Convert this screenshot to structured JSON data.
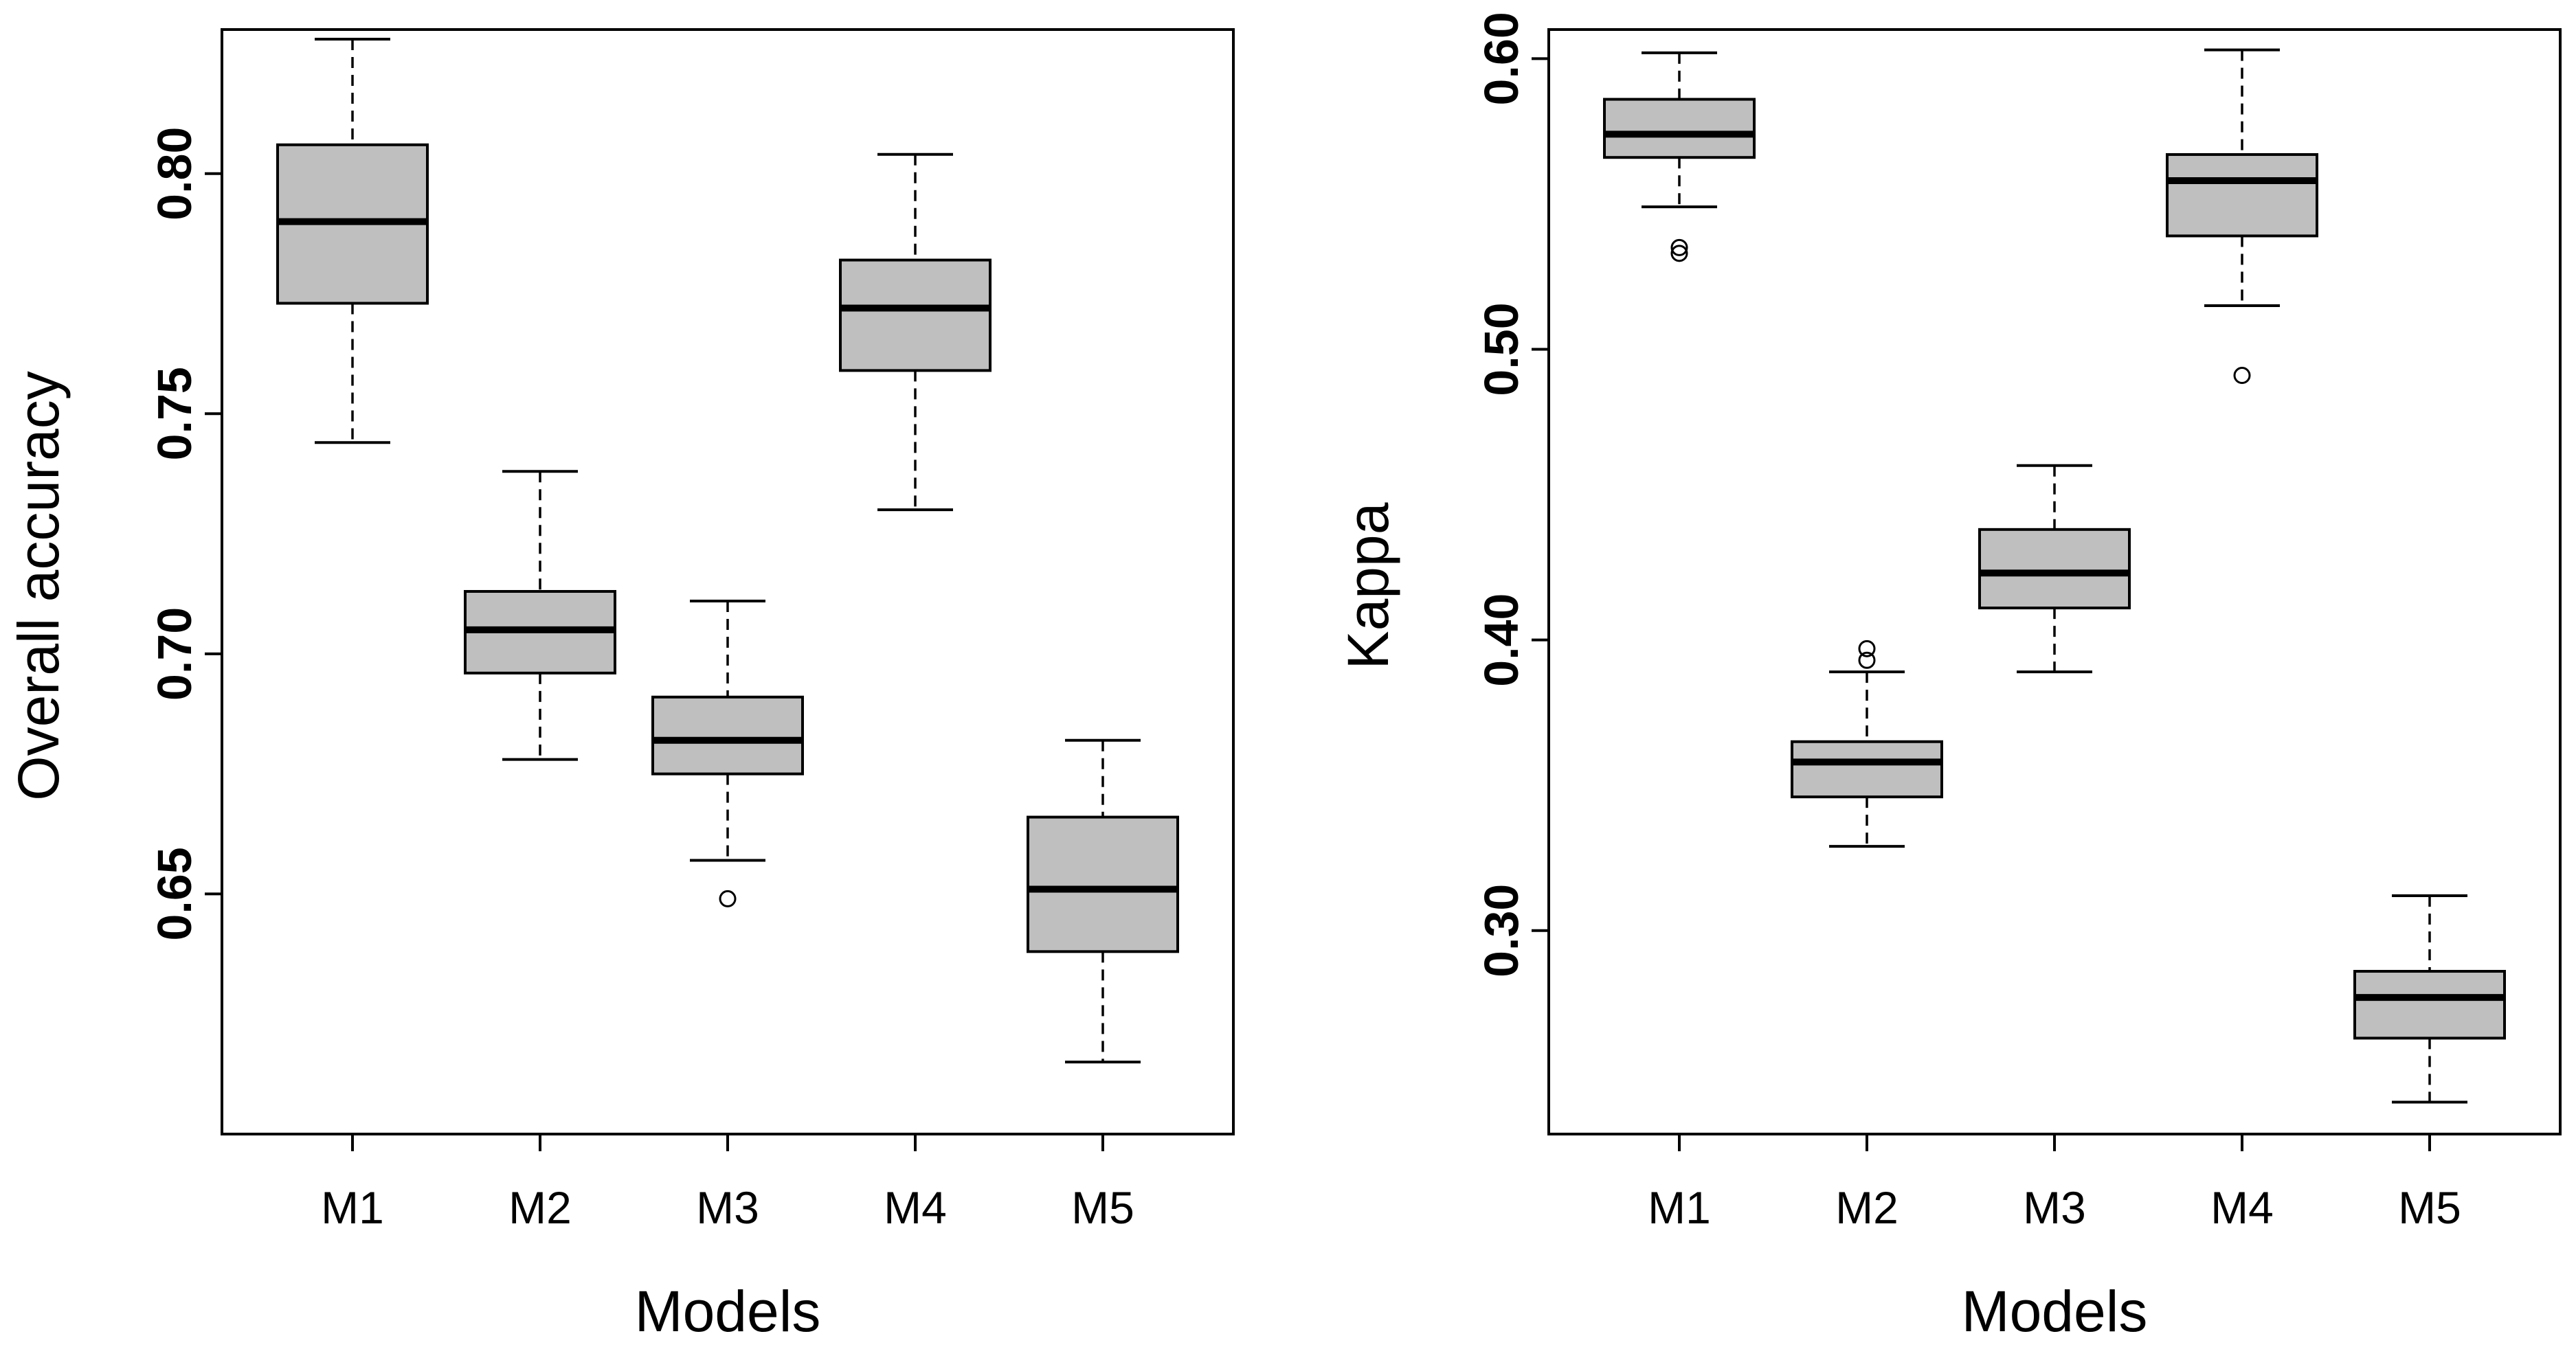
{
  "chart_data": [
    {
      "type": "boxplot",
      "xlabel": "Models",
      "ylabel": "Overall accuracy",
      "categories": [
        "M1",
        "M2",
        "M3",
        "M4",
        "M5"
      ],
      "ylim": [
        0.6,
        0.83
      ],
      "yticks": [
        0.65,
        0.7,
        0.75,
        0.8
      ],
      "ytick_labels": [
        "0.65",
        "0.70",
        "0.75",
        "0.80"
      ],
      "boxes": [
        {
          "name": "M1",
          "min": 0.744,
          "q1": 0.773,
          "median": 0.79,
          "q3": 0.806,
          "max": 0.828,
          "outliers": []
        },
        {
          "name": "M2",
          "min": 0.678,
          "q1": 0.696,
          "median": 0.705,
          "q3": 0.713,
          "max": 0.738,
          "outliers": []
        },
        {
          "name": "M3",
          "min": 0.657,
          "q1": 0.675,
          "median": 0.682,
          "q3": 0.691,
          "max": 0.711,
          "outliers": [
            0.649
          ]
        },
        {
          "name": "M4",
          "min": 0.73,
          "q1": 0.759,
          "median": 0.772,
          "q3": 0.782,
          "max": 0.804,
          "outliers": []
        },
        {
          "name": "M5",
          "min": 0.615,
          "q1": 0.638,
          "median": 0.651,
          "q3": 0.666,
          "max": 0.682,
          "outliers": []
        }
      ]
    },
    {
      "type": "boxplot",
      "xlabel": "Models",
      "ylabel": "Kappa",
      "categories": [
        "M1",
        "M2",
        "M3",
        "M4",
        "M5"
      ],
      "ylim": [
        0.23,
        0.61
      ],
      "yticks": [
        0.3,
        0.4,
        0.5,
        0.6
      ],
      "ytick_labels": [
        "0.30",
        "0.40",
        "0.50",
        "0.60"
      ],
      "boxes": [
        {
          "name": "M1",
          "min": 0.549,
          "q1": 0.566,
          "median": 0.574,
          "q3": 0.586,
          "max": 0.602,
          "outliers": [
            0.533,
            0.535
          ]
        },
        {
          "name": "M2",
          "min": 0.329,
          "q1": 0.346,
          "median": 0.358,
          "q3": 0.365,
          "max": 0.389,
          "outliers": [
            0.393,
            0.397
          ]
        },
        {
          "name": "M3",
          "min": 0.389,
          "q1": 0.411,
          "median": 0.423,
          "q3": 0.438,
          "max": 0.46,
          "outliers": []
        },
        {
          "name": "M4",
          "min": 0.515,
          "q1": 0.539,
          "median": 0.558,
          "q3": 0.567,
          "max": 0.603,
          "outliers": [
            0.491
          ]
        },
        {
          "name": "M5",
          "min": 0.241,
          "q1": 0.263,
          "median": 0.277,
          "q3": 0.286,
          "max": 0.312,
          "outliers": []
        }
      ]
    }
  ]
}
